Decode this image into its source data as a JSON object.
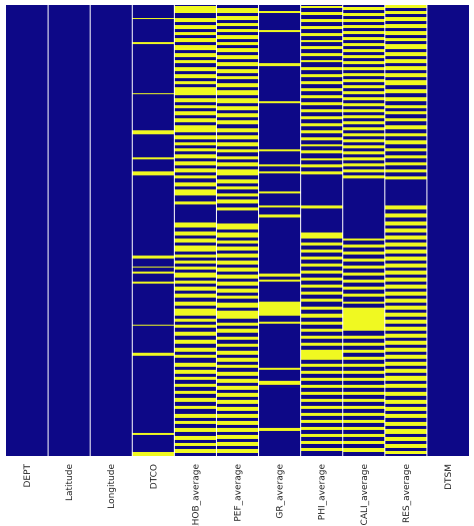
{
  "chart_data": {
    "type": "heatmap",
    "title": "",
    "xlabel": "",
    "ylabel": "",
    "grid": false,
    "legend": "none",
    "colors": {
      "present": "#0d0887",
      "missing": "#f0f921",
      "separator": "#ffffff"
    },
    "columns": [
      "DEPT",
      "Latitude",
      "Longitude",
      "DTCO",
      "RHOB_average",
      "PEF_average",
      "GR_average",
      "PHI_average",
      "CALI_average",
      "RES_average",
      "DTSM"
    ],
    "row_count": 450,
    "missing_row_ranges": {
      "DEPT": [],
      "Latitude": [],
      "Longitude": [],
      "DTCO": [
        [
          13,
          14
        ],
        [
          37,
          39
        ],
        [
          88,
          89
        ],
        [
          125,
          129
        ],
        [
          152,
          154
        ],
        [
          166,
          170
        ],
        [
          250,
          253
        ],
        [
          261,
          262
        ],
        [
          266,
          268
        ],
        [
          276,
          278
        ],
        [
          319,
          320
        ],
        [
          347,
          350
        ],
        [
          427,
          429
        ],
        [
          446,
          450
        ]
      ],
      "RHOB_average": [
        [
          1,
          8
        ],
        [
          13,
          17
        ],
        [
          20,
          24
        ],
        [
          27,
          30
        ],
        [
          33,
          37
        ],
        [
          40,
          45
        ],
        [
          48,
          52
        ],
        [
          55,
          58
        ],
        [
          62,
          66
        ],
        [
          69,
          73
        ],
        [
          76,
          79
        ],
        [
          82,
          90
        ],
        [
          93,
          97
        ],
        [
          100,
          103
        ],
        [
          106,
          110
        ],
        [
          113,
          117
        ],
        [
          120,
          127
        ],
        [
          130,
          134
        ],
        [
          137,
          140
        ],
        [
          143,
          146
        ],
        [
          149,
          153
        ],
        [
          156,
          160
        ],
        [
          163,
          167
        ],
        [
          170,
          173
        ],
        [
          177,
          181
        ],
        [
          184,
          190
        ],
        [
          196,
          199
        ],
        [
          217,
          222
        ],
        [
          226,
          230
        ],
        [
          233,
          237
        ],
        [
          240,
          246
        ],
        [
          249,
          252
        ],
        [
          255,
          258
        ],
        [
          261,
          264
        ],
        [
          267,
          272
        ],
        [
          275,
          278
        ],
        [
          281,
          285
        ],
        [
          288,
          292
        ],
        [
          296,
          300
        ],
        [
          303,
          310
        ],
        [
          313,
          316
        ],
        [
          319,
          322
        ],
        [
          326,
          330
        ],
        [
          334,
          338
        ],
        [
          342,
          346
        ],
        [
          349,
          352
        ],
        [
          357,
          361
        ],
        [
          364,
          368
        ],
        [
          371,
          374
        ],
        [
          378,
          381
        ],
        [
          385,
          388
        ],
        [
          392,
          396
        ],
        [
          400,
          403
        ],
        [
          408,
          412
        ],
        [
          415,
          418
        ],
        [
          422,
          426
        ],
        [
          430,
          434
        ],
        [
          437,
          440
        ],
        [
          443,
          447
        ]
      ],
      "PEF_average": [
        [
          3,
          8
        ],
        [
          11,
          15
        ],
        [
          18,
          21
        ],
        [
          24,
          27
        ],
        [
          30,
          34
        ],
        [
          37,
          40
        ],
        [
          43,
          47
        ],
        [
          50,
          54
        ],
        [
          57,
          61
        ],
        [
          64,
          68
        ],
        [
          71,
          74
        ],
        [
          78,
          82
        ],
        [
          85,
          90
        ],
        [
          93,
          98
        ],
        [
          101,
          105
        ],
        [
          108,
          112
        ],
        [
          115,
          119
        ],
        [
          123,
          127
        ],
        [
          130,
          134
        ],
        [
          137,
          141
        ],
        [
          144,
          147
        ],
        [
          151,
          154
        ],
        [
          157,
          161
        ],
        [
          164,
          170
        ],
        [
          174,
          178
        ],
        [
          181,
          184
        ],
        [
          188,
          191
        ],
        [
          194,
          198
        ],
        [
          202,
          205
        ],
        [
          218,
          224
        ],
        [
          227,
          232
        ],
        [
          235,
          238
        ],
        [
          241,
          245
        ],
        [
          248,
          252
        ],
        [
          255,
          259
        ],
        [
          262,
          266
        ],
        [
          269,
          273
        ],
        [
          276,
          280
        ],
        [
          283,
          287
        ],
        [
          290,
          293
        ],
        [
          297,
          302
        ],
        [
          305,
          313
        ],
        [
          317,
          320
        ],
        [
          323,
          327
        ],
        [
          331,
          334
        ],
        [
          338,
          341
        ],
        [
          345,
          349
        ],
        [
          352,
          356
        ],
        [
          359,
          362
        ],
        [
          366,
          370
        ],
        [
          373,
          377
        ],
        [
          380,
          384
        ],
        [
          387,
          391
        ],
        [
          394,
          398
        ],
        [
          401,
          405
        ],
        [
          408,
          412
        ],
        [
          415,
          419
        ],
        [
          422,
          426
        ],
        [
          429,
          433
        ],
        [
          436,
          440
        ],
        [
          443,
          447
        ]
      ],
      "GR_average": [
        [
          6,
          8
        ],
        [
          25,
          27
        ],
        [
          58,
          61
        ],
        [
          96,
          98
        ],
        [
          144,
          146
        ],
        [
          159,
          161
        ],
        [
          166,
          168
        ],
        [
          186,
          188
        ],
        [
          200,
          202
        ],
        [
          209,
          212
        ],
        [
          268,
          271
        ],
        [
          274,
          276
        ],
        [
          296,
          310
        ],
        [
          316,
          318
        ],
        [
          362,
          364
        ],
        [
          375,
          379
        ],
        [
          422,
          425
        ]
      ],
      "PHI_average": [
        [
          1,
          3
        ],
        [
          7,
          10
        ],
        [
          14,
          17
        ],
        [
          21,
          24
        ],
        [
          28,
          31
        ],
        [
          35,
          37
        ],
        [
          41,
          44
        ],
        [
          48,
          51
        ],
        [
          55,
          57
        ],
        [
          62,
          65
        ],
        [
          69,
          72
        ],
        [
          76,
          79
        ],
        [
          83,
          86
        ],
        [
          90,
          93
        ],
        [
          97,
          100
        ],
        [
          104,
          107
        ],
        [
          111,
          114
        ],
        [
          118,
          121
        ],
        [
          125,
          128
        ],
        [
          132,
          135
        ],
        [
          139,
          141
        ],
        [
          145,
          148
        ],
        [
          153,
          155
        ],
        [
          159,
          162
        ],
        [
          166,
          169
        ],
        [
          200,
          203
        ],
        [
          227,
          233
        ],
        [
          237,
          240
        ],
        [
          244,
          247
        ],
        [
          251,
          254
        ],
        [
          258,
          261
        ],
        [
          265,
          268
        ],
        [
          272,
          275
        ],
        [
          279,
          282
        ],
        [
          286,
          289
        ],
        [
          293,
          296
        ],
        [
          301,
          304
        ],
        [
          308,
          312
        ],
        [
          316,
          319
        ],
        [
          323,
          326
        ],
        [
          330,
          333
        ],
        [
          337,
          340
        ],
        [
          344,
          354
        ],
        [
          358,
          361
        ],
        [
          365,
          368
        ],
        [
          372,
          375
        ],
        [
          379,
          382
        ],
        [
          386,
          389
        ],
        [
          393,
          396
        ],
        [
          400,
          403
        ],
        [
          407,
          410
        ],
        [
          414,
          417
        ],
        [
          421,
          424
        ],
        [
          428,
          431
        ],
        [
          435,
          438
        ],
        [
          442,
          445
        ]
      ],
      "CALI_average": [
        [
          2,
          5
        ],
        [
          8,
          11
        ],
        [
          14,
          17
        ],
        [
          20,
          23
        ],
        [
          26,
          29
        ],
        [
          32,
          35
        ],
        [
          38,
          41
        ],
        [
          44,
          47
        ],
        [
          50,
          53
        ],
        [
          56,
          59
        ],
        [
          62,
          65
        ],
        [
          68,
          71
        ],
        [
          74,
          77
        ],
        [
          80,
          83
        ],
        [
          86,
          89
        ],
        [
          92,
          95
        ],
        [
          98,
          101
        ],
        [
          104,
          107
        ],
        [
          110,
          113
        ],
        [
          116,
          119
        ],
        [
          122,
          125
        ],
        [
          128,
          131
        ],
        [
          134,
          137
        ],
        [
          140,
          143
        ],
        [
          146,
          149
        ],
        [
          152,
          155
        ],
        [
          158,
          161
        ],
        [
          164,
          167
        ],
        [
          170,
          173
        ],
        [
          233,
          235
        ],
        [
          239,
          242
        ],
        [
          246,
          249
        ],
        [
          253,
          256
        ],
        [
          260,
          263
        ],
        [
          267,
          270
        ],
        [
          274,
          277
        ],
        [
          281,
          284
        ],
        [
          288,
          291
        ],
        [
          296,
          298
        ],
        [
          302,
          325
        ],
        [
          330,
          333
        ],
        [
          337,
          340
        ],
        [
          344,
          347
        ],
        [
          351,
          354
        ],
        [
          358,
          361
        ],
        [
          365,
          368
        ],
        [
          372,
          375
        ],
        [
          379,
          382
        ],
        [
          386,
          389
        ],
        [
          393,
          396
        ],
        [
          400,
          403
        ],
        [
          407,
          410
        ],
        [
          414,
          417
        ],
        [
          421,
          424
        ],
        [
          428,
          431
        ],
        [
          435,
          438
        ],
        [
          442,
          446
        ]
      ],
      "RES_average": [
        [
          0,
          3
        ],
        [
          6,
          9
        ],
        [
          12,
          16
        ],
        [
          19,
          23
        ],
        [
          26,
          30
        ],
        [
          33,
          36
        ],
        [
          39,
          44
        ],
        [
          47,
          51
        ],
        [
          54,
          58
        ],
        [
          61,
          65
        ],
        [
          68,
          72
        ],
        [
          75,
          80
        ],
        [
          84,
          88
        ],
        [
          92,
          96
        ],
        [
          100,
          103
        ],
        [
          106,
          109
        ],
        [
          113,
          116
        ],
        [
          120,
          124
        ],
        [
          128,
          131
        ],
        [
          135,
          139
        ],
        [
          143,
          146
        ],
        [
          150,
          153
        ],
        [
          157,
          160
        ],
        [
          164,
          167
        ],
        [
          171,
          174
        ],
        [
          200,
          204
        ],
        [
          208,
          212
        ],
        [
          216,
          220
        ],
        [
          223,
          227
        ],
        [
          230,
          234
        ],
        [
          237,
          241
        ],
        [
          244,
          248
        ],
        [
          251,
          255
        ],
        [
          258,
          262
        ],
        [
          265,
          269
        ],
        [
          272,
          276
        ],
        [
          279,
          283
        ],
        [
          286,
          290
        ],
        [
          293,
          297
        ],
        [
          300,
          304
        ],
        [
          307,
          311
        ],
        [
          314,
          318
        ],
        [
          321,
          325
        ],
        [
          328,
          332
        ],
        [
          335,
          339
        ],
        [
          342,
          346
        ],
        [
          349,
          353
        ],
        [
          356,
          360
        ],
        [
          363,
          367
        ],
        [
          370,
          375
        ],
        [
          378,
          382
        ],
        [
          386,
          390
        ],
        [
          394,
          398
        ],
        [
          401,
          405
        ],
        [
          408,
          412
        ],
        [
          416,
          420
        ],
        [
          423,
          428
        ],
        [
          431,
          435
        ],
        [
          438,
          442
        ],
        [
          445,
          448
        ]
      ],
      "DTSM": []
    }
  }
}
